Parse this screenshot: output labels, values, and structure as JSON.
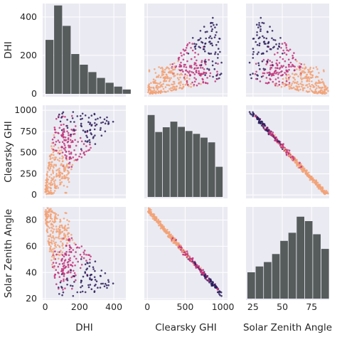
{
  "chart_data": {
    "type": "scatter",
    "kind": "pair-plot",
    "variables": [
      "DHI",
      "Clearsky GHI",
      "Solar Zenith Angle"
    ],
    "axis_labels": {
      "x": [
        "DHI",
        "Clearsky GHI",
        "Solar Zenith Angle"
      ],
      "y": [
        "DHI",
        "Clearsky GHI",
        "Solar Zenith Angle"
      ]
    },
    "x_ticks": {
      "DHI": [
        "0",
        "200",
        "400"
      ],
      "Clearsky GHI": [
        "0",
        "500",
        "1000"
      ],
      "Solar Zenith Angle": [
        "25",
        "50",
        "75"
      ]
    },
    "y_ticks": {
      "DHI": [
        "0",
        "200",
        "400"
      ],
      "Clearsky GHI": [
        "0",
        "250",
        "500",
        "750",
        "1000"
      ],
      "Solar Zenith Angle": [
        "20",
        "40",
        "60",
        "80"
      ]
    },
    "ranges": {
      "DHI": [
        -15,
        470
      ],
      "Clearsky GHI": [
        -40,
        1060
      ],
      "Solar Zenith Angle": [
        19,
        90
      ]
    },
    "histograms": {
      "DHI": {
        "bin_start": 0,
        "bin_width": 50,
        "counts": [
          278,
          455,
          350,
          205,
          150,
          112,
          82,
          57,
          37,
          22
        ],
        "ylim": [
          0,
          465
        ]
      },
      "Clearsky GHI": {
        "bin_start": 0,
        "bin_width": 100,
        "counts": [
          435,
          345,
          370,
          400,
          372,
          350,
          335,
          315,
          290,
          160
        ]
      },
      "Solar Zenith Angle": {
        "bin_start": 20,
        "bin_width": 7,
        "counts": [
          180,
          220,
          250,
          305,
          395,
          450,
          560,
          530,
          440,
          340
        ]
      }
    },
    "colors": {
      "hist": "#565b5b",
      "panel_bg": "#eaeaf2",
      "grid": "#ffffff",
      "points_cool": "#2b1f5c",
      "points_mid": "#c2347a",
      "points_warm": "#f2a277"
    },
    "grid": true
  }
}
